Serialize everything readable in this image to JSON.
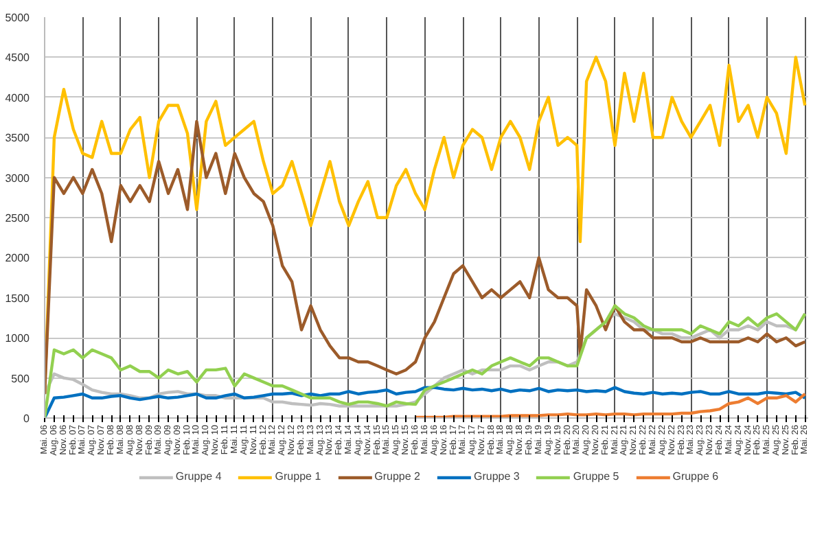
{
  "chart_data": {
    "type": "line",
    "x": [
      "2006-05",
      "2006-08",
      "2006-11",
      "2007-02",
      "2007-05",
      "2007-08",
      "2007-11",
      "2008-02",
      "2008-05",
      "2008-08",
      "2008-11",
      "2009-02",
      "2009-05",
      "2009-08",
      "2009-11",
      "2010-02",
      "2010-05",
      "2010-08",
      "2010-11",
      "2011-02",
      "2011-05",
      "2011-08",
      "2011-11",
      "2012-02",
      "2012-05",
      "2012-08",
      "2012-11",
      "2013-02",
      "2013-05",
      "2013-08",
      "2013-11",
      "2014-02",
      "2014-05",
      "2014-08",
      "2014-11",
      "2015-02",
      "2015-05",
      "2015-08",
      "2015-11",
      "2016-02",
      "2016-05",
      "2016-08",
      "2016-11",
      "2017-02",
      "2017-05",
      "2017-08",
      "2017-11",
      "2018-02",
      "2018-05",
      "2018-08",
      "2018-11",
      "2019-02",
      "2019-05",
      "2019-08",
      "2019-11",
      "2020-02",
      "2020-05",
      "2020-08",
      "2020-11",
      "2021-02",
      "2021-05",
      "2021-08",
      "2021-11",
      "2022-02",
      "2022-05",
      "2022-08",
      "2022-11",
      "2023-02",
      "2023-05",
      "2023-08",
      "2023-11",
      "2024-02",
      "2024-05",
      "2024-08",
      "2024-11",
      "2025-02",
      "2025-05",
      "2025-08",
      "2025-11",
      "2026-02",
      "2026-05"
    ],
    "series": [
      {
        "name": "Gruppe 4",
        "color": "#bfbfbf",
        "values": [
          300,
          550,
          500,
          480,
          420,
          350,
          320,
          300,
          300,
          280,
          250,
          250,
          300,
          320,
          330,
          300,
          300,
          280,
          280,
          250,
          250,
          250,
          250,
          250,
          200,
          200,
          180,
          170,
          160,
          180,
          170,
          150,
          150,
          150,
          150,
          150,
          150,
          150,
          170,
          200,
          300,
          400,
          500,
          550,
          600,
          550,
          600,
          600,
          600,
          650,
          650,
          600,
          650,
          700,
          700,
          650,
          700,
          1000,
          1100,
          1200,
          1300,
          1250,
          1200,
          1100,
          1100,
          1050,
          1050,
          1000,
          1000,
          1050,
          1100,
          1000,
          1100,
          1100,
          1150,
          1100,
          1200,
          1150,
          1150,
          1100,
          1300
        ]
      },
      {
        "name": "Gruppe 1",
        "color": "#ffc000",
        "x": [
          "2006-05",
          "2006-08",
          "2006-11",
          "2007-02",
          "2007-05",
          "2007-08",
          "2007-11",
          "2008-02",
          "2008-05",
          "2008-08",
          "2008-11",
          "2009-02",
          "2009-05",
          "2009-08",
          "2009-11",
          "2010-02",
          "2010-05",
          "2010-08",
          "2010-11",
          "2011-02",
          "2011-05",
          "2011-08",
          "2011-11",
          "2012-02",
          "2012-05",
          "2012-08",
          "2012-11",
          "2013-02",
          "2013-05",
          "2013-08",
          "2013-11",
          "2014-02",
          "2014-05",
          "2014-08",
          "2014-11",
          "2015-02",
          "2015-05",
          "2015-08",
          "2015-11",
          "2016-02",
          "2016-05",
          "2016-08",
          "2016-11",
          "2017-02",
          "2017-05",
          "2017-08",
          "2017-11",
          "2018-02",
          "2018-05",
          "2018-08",
          "2018-11",
          "2019-02",
          "2019-05",
          "2019-08",
          "2019-11",
          "2020-02",
          "2020-05",
          "2020-06",
          "2020-08",
          "2020-11",
          "2021-02",
          "2021-05",
          "2021-08",
          "2021-11",
          "2022-02",
          "2022-05",
          "2022-08",
          "2022-11",
          "2023-02",
          "2023-05",
          "2023-08",
          "2023-11",
          "2024-02",
          "2024-05",
          "2024-08",
          "2024-11",
          "2025-02",
          "2025-05",
          "2025-08",
          "2025-11",
          "2026-02",
          "2026-05"
        ],
        "values": [
          300,
          3500,
          4100,
          3600,
          3300,
          3250,
          3700,
          3300,
          3300,
          3600,
          3750,
          3000,
          3700,
          3900,
          3900,
          3550,
          2600,
          3700,
          3950,
          3400,
          3500,
          3600,
          3700,
          3200,
          2800,
          2900,
          3200,
          2800,
          2400,
          2800,
          3200,
          2700,
          2400,
          2700,
          2950,
          2500,
          2500,
          2900,
          3100,
          2800,
          2600,
          3100,
          3500,
          3000,
          3400,
          3600,
          3500,
          3100,
          3500,
          3700,
          3500,
          3100,
          3700,
          4000,
          3400,
          3500,
          3400,
          2200,
          4200,
          4500,
          4200,
          3400,
          4300,
          3700,
          4300,
          3500,
          3500,
          4000,
          3700,
          3500,
          3700,
          3900,
          3400,
          4400,
          3700,
          3900,
          3500,
          4000,
          3800,
          3300,
          4500,
          3900
        ]
      },
      {
        "name": "Gruppe 2",
        "color": "#9c5b2a",
        "x": [
          "2006-05",
          "2006-08",
          "2006-11",
          "2007-02",
          "2007-05",
          "2007-08",
          "2007-11",
          "2008-02",
          "2008-05",
          "2008-08",
          "2008-11",
          "2009-02",
          "2009-05",
          "2009-08",
          "2009-11",
          "2010-02",
          "2010-05",
          "2010-08",
          "2010-11",
          "2011-02",
          "2011-05",
          "2011-08",
          "2011-11",
          "2012-02",
          "2012-05",
          "2012-08",
          "2012-11",
          "2013-02",
          "2013-05",
          "2013-08",
          "2013-11",
          "2014-02",
          "2014-05",
          "2014-08",
          "2014-11",
          "2015-02",
          "2015-05",
          "2015-08",
          "2015-11",
          "2016-02",
          "2016-05",
          "2016-08",
          "2016-11",
          "2017-02",
          "2017-05",
          "2017-08",
          "2017-11",
          "2018-02",
          "2018-05",
          "2018-08",
          "2018-11",
          "2019-02",
          "2019-05",
          "2019-08",
          "2019-11",
          "2020-02",
          "2020-05",
          "2020-06",
          "2020-08",
          "2020-11",
          "2021-02",
          "2021-05",
          "2021-08",
          "2021-11",
          "2022-02",
          "2022-05",
          "2022-08",
          "2022-11",
          "2023-02",
          "2023-05",
          "2023-08",
          "2023-11",
          "2024-02",
          "2024-05",
          "2024-08",
          "2024-11",
          "2025-02",
          "2025-05",
          "2025-08",
          "2025-11",
          "2026-02",
          "2026-05"
        ],
        "values": [
          300,
          3000,
          2800,
          3000,
          2800,
          3100,
          2800,
          2200,
          2900,
          2700,
          2900,
          2700,
          3200,
          2800,
          3100,
          2600,
          3700,
          3000,
          3300,
          2800,
          3300,
          3000,
          2800,
          2700,
          2400,
          1900,
          1700,
          1100,
          1400,
          1100,
          900,
          750,
          750,
          700,
          700,
          650,
          600,
          550,
          600,
          700,
          1000,
          1200,
          1500,
          1800,
          1900,
          1700,
          1500,
          1600,
          1500,
          1600,
          1700,
          1500,
          2000,
          1600,
          1500,
          1500,
          1400,
          800,
          1600,
          1400,
          1100,
          1400,
          1200,
          1100,
          1100,
          1000,
          1000,
          1000,
          950,
          950,
          1000,
          950,
          950,
          950,
          950,
          1000,
          950,
          1050,
          950,
          1000,
          900,
          950
        ]
      },
      {
        "name": "Gruppe 3",
        "color": "#0070c0",
        "values": [
          0,
          250,
          260,
          280,
          300,
          250,
          250,
          270,
          280,
          250,
          230,
          250,
          270,
          250,
          260,
          280,
          300,
          250,
          250,
          280,
          300,
          250,
          260,
          280,
          300,
          300,
          310,
          280,
          300,
          280,
          300,
          300,
          330,
          300,
          320,
          330,
          350,
          300,
          320,
          330,
          380,
          380,
          360,
          350,
          370,
          350,
          360,
          340,
          360,
          330,
          350,
          340,
          370,
          330,
          350,
          340,
          350,
          330,
          340,
          330,
          380,
          330,
          310,
          300,
          320,
          300,
          310,
          300,
          320,
          330,
          300,
          300,
          330,
          300,
          300,
          300,
          320,
          310,
          300,
          320,
          250
        ]
      },
      {
        "name": "Gruppe 5",
        "color": "#92d050",
        "values": [
          0,
          850,
          800,
          850,
          750,
          850,
          800,
          750,
          600,
          650,
          580,
          580,
          500,
          600,
          550,
          580,
          450,
          600,
          600,
          620,
          400,
          550,
          500,
          450,
          400,
          400,
          350,
          300,
          250,
          250,
          250,
          200,
          170,
          200,
          200,
          180,
          150,
          200,
          180,
          170,
          350,
          400,
          450,
          500,
          550,
          600,
          550,
          650,
          700,
          750,
          700,
          650,
          750,
          750,
          700,
          650,
          650,
          1000,
          1100,
          1200,
          1400,
          1300,
          1250,
          1150,
          1100,
          1100,
          1100,
          1100,
          1050,
          1150,
          1100,
          1050,
          1200,
          1150,
          1250,
          1150,
          1250,
          1300,
          1200,
          1100,
          1300
        ]
      },
      {
        "name": "Gruppe 6",
        "color": "#ed7d31",
        "x": [
          "2016-02",
          "2016-05",
          "2016-08",
          "2016-11",
          "2017-02",
          "2017-05",
          "2017-08",
          "2017-11",
          "2018-02",
          "2018-05",
          "2018-08",
          "2018-11",
          "2019-02",
          "2019-05",
          "2019-08",
          "2019-11",
          "2020-02",
          "2020-05",
          "2020-08",
          "2020-11",
          "2021-02",
          "2021-05",
          "2021-08",
          "2021-11",
          "2022-02",
          "2022-05",
          "2022-08",
          "2022-11",
          "2023-02",
          "2023-05",
          "2023-08",
          "2023-11",
          "2024-02",
          "2024-05",
          "2024-08",
          "2024-11",
          "2025-02",
          "2025-05",
          "2025-08",
          "2025-11",
          "2026-02",
          "2026-05"
        ],
        "values": [
          10,
          10,
          10,
          10,
          20,
          20,
          20,
          20,
          20,
          20,
          30,
          30,
          30,
          30,
          40,
          40,
          50,
          40,
          40,
          50,
          40,
          50,
          50,
          40,
          50,
          50,
          50,
          50,
          60,
          60,
          80,
          90,
          110,
          180,
          200,
          250,
          180,
          250,
          250,
          280,
          200,
          300
        ]
      }
    ],
    "xlim": [
      "2006-05",
      "2026-06"
    ],
    "ylim": [
      0,
      5000
    ],
    "yticks": [
      0,
      500,
      1000,
      1500,
      2000,
      2500,
      3000,
      3500,
      4000,
      4500,
      5000
    ],
    "xticks": [
      {
        "value": "2006-05",
        "label": "Mai. 06"
      },
      {
        "value": "2006-08",
        "label": "Aug. 06"
      },
      {
        "value": "2006-11",
        "label": "Nov. 06"
      },
      {
        "value": "2007-02",
        "label": "Feb. 07"
      },
      {
        "value": "2007-05",
        "label": "Mai. 07"
      },
      {
        "value": "2007-08",
        "label": "Aug. 07"
      },
      {
        "value": "2007-11",
        "label": "Nov. 07"
      },
      {
        "value": "2008-02",
        "label": "Feb. 08"
      },
      {
        "value": "2008-05",
        "label": "Mai. 08"
      },
      {
        "value": "2008-08",
        "label": "Aug. 08"
      },
      {
        "value": "2008-11",
        "label": "Nov. 08"
      },
      {
        "value": "2009-02",
        "label": "Feb. 09"
      },
      {
        "value": "2009-05",
        "label": "Mai. 09"
      },
      {
        "value": "2009-08",
        "label": "Aug. 09"
      },
      {
        "value": "2009-11",
        "label": "Nov. 09"
      },
      {
        "value": "2010-02",
        "label": "Feb. 10"
      },
      {
        "value": "2010-05",
        "label": "Mai. 10"
      },
      {
        "value": "2010-08",
        "label": "Aug. 10"
      },
      {
        "value": "2010-11",
        "label": "Nov. 10"
      },
      {
        "value": "2011-02",
        "label": "Feb. 11"
      },
      {
        "value": "2011-05",
        "label": "Mai. 11"
      },
      {
        "value": "2011-08",
        "label": "Aug. 11"
      },
      {
        "value": "2011-11",
        "label": "Nov. 11"
      },
      {
        "value": "2012-02",
        "label": "Feb. 12"
      },
      {
        "value": "2012-05",
        "label": "Mai. 12"
      },
      {
        "value": "2012-08",
        "label": "Aug. 12"
      },
      {
        "value": "2012-11",
        "label": "Nov. 12"
      },
      {
        "value": "2013-02",
        "label": "Feb. 13"
      },
      {
        "value": "2013-05",
        "label": "Mai. 13"
      },
      {
        "value": "2013-08",
        "label": "Aug. 13"
      },
      {
        "value": "2013-11",
        "label": "Nov. 13"
      },
      {
        "value": "2014-02",
        "label": "Feb. 14"
      },
      {
        "value": "2014-05",
        "label": "Mai. 14"
      },
      {
        "value": "2014-08",
        "label": "Aug. 14"
      },
      {
        "value": "2014-11",
        "label": "Nov. 14"
      },
      {
        "value": "2015-02",
        "label": "Feb. 15"
      },
      {
        "value": "2015-05",
        "label": "Mai. 15"
      },
      {
        "value": "2015-08",
        "label": "Aug. 15"
      },
      {
        "value": "2015-11",
        "label": "Nov. 15"
      },
      {
        "value": "2016-02",
        "label": "Feb. 16"
      },
      {
        "value": "2016-05",
        "label": "Mai. 16"
      },
      {
        "value": "2016-08",
        "label": "Aug. 16"
      },
      {
        "value": "2016-11",
        "label": "Nov. 16"
      },
      {
        "value": "2017-02",
        "label": "Feb. 17"
      },
      {
        "value": "2017-05",
        "label": "Mai. 17"
      },
      {
        "value": "2017-08",
        "label": "Aug. 17"
      },
      {
        "value": "2017-11",
        "label": "Nov. 17"
      },
      {
        "value": "2018-02",
        "label": "Feb. 18"
      },
      {
        "value": "2018-05",
        "label": "Mai. 18"
      },
      {
        "value": "2018-08",
        "label": "Aug. 18"
      },
      {
        "value": "2018-11",
        "label": "Nov. 18"
      },
      {
        "value": "2019-02",
        "label": "Feb. 19"
      },
      {
        "value": "2019-05",
        "label": "Mai. 19"
      },
      {
        "value": "2019-08",
        "label": "Aug. 19"
      },
      {
        "value": "2019-11",
        "label": "Nov. 19"
      },
      {
        "value": "2020-02",
        "label": "Feb. 20"
      },
      {
        "value": "2020-05",
        "label": "Mai. 20"
      },
      {
        "value": "2020-08",
        "label": "Aug. 20"
      },
      {
        "value": "2020-11",
        "label": "Nov. 20"
      },
      {
        "value": "2021-02",
        "label": "Feb. 21"
      },
      {
        "value": "2021-05",
        "label": "Mai. 21"
      },
      {
        "value": "2021-08",
        "label": "Aug. 21"
      },
      {
        "value": "2021-11",
        "label": "Nov. 21"
      },
      {
        "value": "2022-02",
        "label": "Feb. 22"
      },
      {
        "value": "2022-05",
        "label": "Mai. 22"
      },
      {
        "value": "2022-08",
        "label": "Aug. 22"
      },
      {
        "value": "2022-11",
        "label": "Nov. 22"
      },
      {
        "value": "2023-02",
        "label": "Feb. 23"
      },
      {
        "value": "2023-05",
        "label": "Mai. 23"
      },
      {
        "value": "2023-08",
        "label": "Aug. 23"
      },
      {
        "value": "2023-11",
        "label": "Nov. 23"
      },
      {
        "value": "2024-02",
        "label": "Feb. 24"
      },
      {
        "value": "2024-05",
        "label": "Mai. 24"
      },
      {
        "value": "2024-08",
        "label": "Aug. 24"
      },
      {
        "value": "2024-11",
        "label": "Nov. 24"
      },
      {
        "value": "2025-02",
        "label": "Feb. 25"
      },
      {
        "value": "2025-05",
        "label": "Mai. 25"
      },
      {
        "value": "2025-08",
        "label": "Aug. 25"
      },
      {
        "value": "2025-11",
        "label": "Nov. 25"
      },
      {
        "value": "2026-02",
        "label": "Feb. 26"
      },
      {
        "value": "2026-05",
        "label": "Mai. 26"
      }
    ],
    "grid": true,
    "legend": "bottom"
  }
}
